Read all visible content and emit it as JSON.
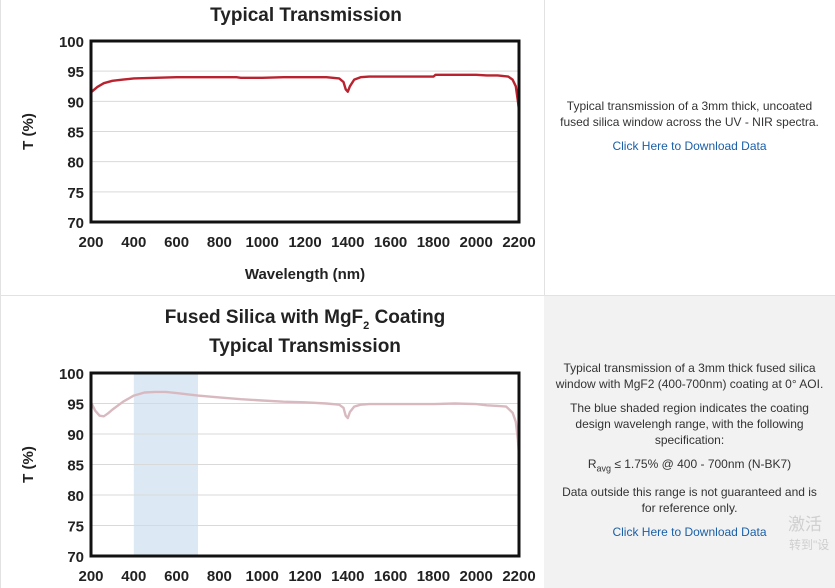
{
  "chart_data": [
    {
      "type": "line",
      "title": "Typical Transmission",
      "xlabel": "Wavelength (nm)",
      "ylabel": "T (%)",
      "xlim": [
        200,
        2200
      ],
      "ylim": [
        70,
        100
      ],
      "xticks": [
        "200",
        "400",
        "600",
        "800",
        "1000",
        "1200",
        "1400",
        "1600",
        "1800",
        "2000",
        "2200"
      ],
      "yticks": [
        "100",
        "95",
        "90",
        "85",
        "80",
        "75",
        "70"
      ],
      "series": [
        {
          "color": "#b8232f",
          "x": [
            200,
            230,
            260,
            300,
            350,
            400,
            500,
            600,
            700,
            800,
            880,
            900,
            1000,
            1100,
            1200,
            1300,
            1360,
            1380,
            1390,
            1400,
            1410,
            1430,
            1460,
            1500,
            1600,
            1700,
            1800,
            1810,
            1900,
            2000,
            2050,
            2100,
            2150,
            2170,
            2185,
            2195,
            2200
          ],
          "y": [
            91.5,
            92.4,
            93.0,
            93.4,
            93.6,
            93.8,
            93.9,
            94.0,
            94.0,
            94.0,
            94.0,
            93.9,
            93.9,
            94.0,
            94.0,
            94.0,
            93.8,
            93.2,
            92.0,
            91.6,
            92.5,
            93.6,
            94.0,
            94.1,
            94.1,
            94.1,
            94.1,
            94.4,
            94.4,
            94.4,
            94.3,
            94.3,
            94.1,
            93.6,
            92.5,
            90.0,
            88.5
          ]
        }
      ]
    },
    {
      "type": "line",
      "title": "Fused Silica with MgF2 Coating Typical Transmission",
      "xlabel": "",
      "ylabel": "T (%)",
      "xlim": [
        200,
        2200
      ],
      "ylim": [
        70,
        100
      ],
      "xticks": [
        "200",
        "400",
        "600",
        "800",
        "1000",
        "1200",
        "1400",
        "1600",
        "1800",
        "2000",
        "2200"
      ],
      "yticks": [
        "100",
        "95",
        "90",
        "85",
        "80",
        "75",
        "70"
      ],
      "shaded_region": [
        400,
        700
      ],
      "series": [
        {
          "color": "#d8b9c0",
          "x": [
            200,
            220,
            240,
            260,
            280,
            300,
            350,
            400,
            450,
            500,
            550,
            600,
            700,
            800,
            900,
            1000,
            1100,
            1200,
            1300,
            1360,
            1380,
            1390,
            1400,
            1410,
            1430,
            1460,
            1500,
            1600,
            1700,
            1800,
            1900,
            2000,
            2050,
            2100,
            2140,
            2170,
            2185,
            2195,
            2200
          ],
          "y": [
            95.2,
            93.8,
            93.0,
            92.9,
            93.4,
            94.0,
            95.3,
            96.3,
            96.8,
            96.9,
            96.9,
            96.7,
            96.3,
            96.0,
            95.7,
            95.5,
            95.3,
            95.2,
            95.0,
            94.8,
            94.3,
            93.0,
            92.6,
            93.6,
            94.5,
            94.8,
            94.9,
            94.9,
            94.9,
            94.9,
            95.0,
            94.9,
            94.7,
            94.6,
            94.5,
            93.5,
            92.0,
            89.0,
            86.5
          ]
        }
      ]
    }
  ],
  "chart2_title_line1_main": "Fused Silica with MgF",
  "chart2_title_line1_sub": "2",
  "chart2_title_line1_end": " Coating",
  "chart2_title_line2": "Typical Transmission",
  "row1_desc": "Typical transmission of a 3mm thick, uncoated fused silica window across the UV - NIR spectra.",
  "row1_link": "Click Here to Download Data",
  "row2_desc1": "Typical transmission of a 3mm thick fused silica window with MgF2 (400-700nm) coating at 0° AOI.",
  "row2_desc2": "The blue shaded region indicates the coating design wavelengh range, with the following specification:",
  "row2_spec_r": "R",
  "row2_spec_sub": "avg",
  "row2_spec_rest": " ≤ 1.75% @ 400 - 700nm (N-BK7)",
  "row2_desc3": "Data outside this range is not guaranteed and is for reference only.",
  "row2_link": "Click Here to Download Data",
  "watermark1": "激活",
  "watermark2": "转到\"设"
}
